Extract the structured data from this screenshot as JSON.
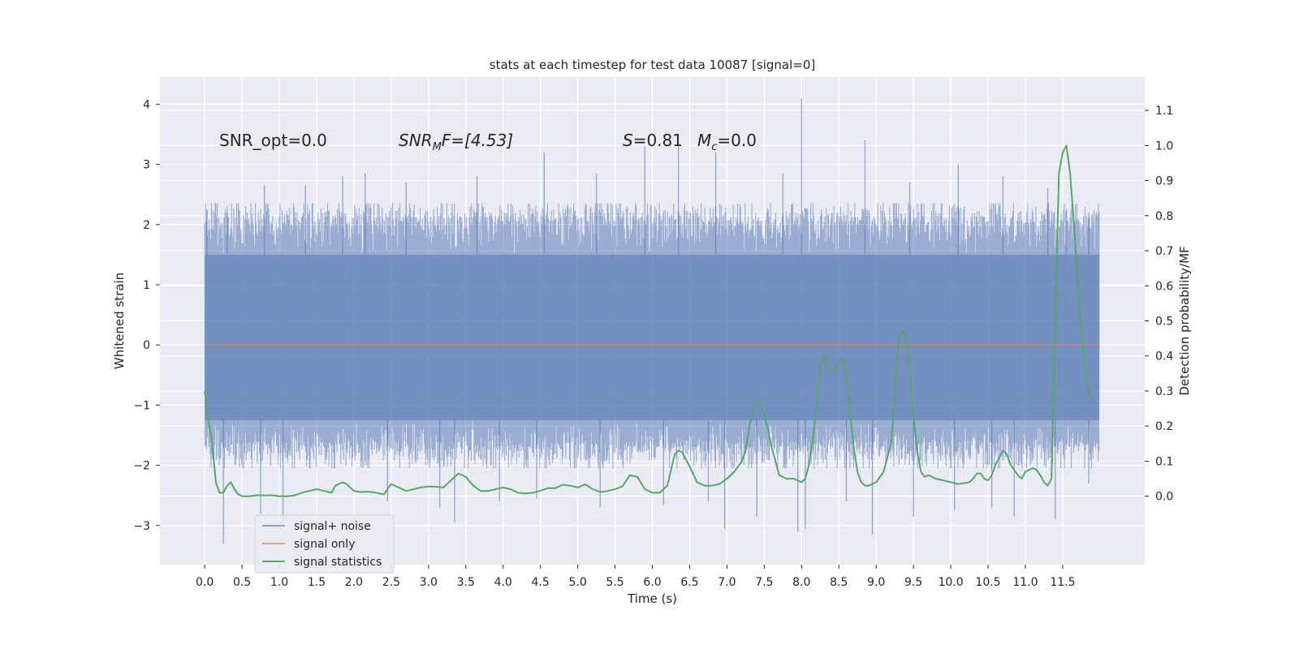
{
  "chart_data": {
    "type": "line",
    "title": "stats at each timestep for test data 10087 [signal=0]",
    "xlabel": "Time (s)",
    "ylabel": "Whitened strain",
    "y2label": "Detection probability/MF",
    "xlim": [
      -0.6,
      12.6
    ],
    "ylim": [
      -3.65,
      4.45
    ],
    "y2lim": [
      -0.195,
      1.195
    ],
    "xticks": [
      0.0,
      0.5,
      1.0,
      1.5,
      2.0,
      2.5,
      3.0,
      3.5,
      4.0,
      4.5,
      5.0,
      5.5,
      6.0,
      6.5,
      7.0,
      7.5,
      8.0,
      8.5,
      9.0,
      9.5,
      10.0,
      10.5,
      11.0,
      11.5
    ],
    "xtick_labels": [
      "0.0",
      "0.5",
      "1.0",
      "1.5",
      "2.0",
      "2.5",
      "3.0",
      "3.5",
      "4.0",
      "4.5",
      "5.0",
      "5.5",
      "6.0",
      "6.5",
      "7.0",
      "7.5",
      "8.0",
      "8.5",
      "9.0",
      "9.5",
      "10.0",
      "10.5",
      "11.0",
      "11.5"
    ],
    "yticks": [
      -3,
      -2,
      -1,
      0,
      1,
      2,
      3,
      4
    ],
    "ytick_labels": [
      "−3",
      "−2",
      "−1",
      "0",
      "1",
      "2",
      "3",
      "4"
    ],
    "y2ticks": [
      0.0,
      0.1,
      0.2,
      0.3,
      0.4,
      0.5,
      0.6,
      0.7,
      0.8,
      0.9,
      1.0,
      1.1
    ],
    "y2tick_labels": [
      "0.0",
      "0.1",
      "0.2",
      "0.3",
      "0.4",
      "0.5",
      "0.6",
      "0.7",
      "0.8",
      "0.9",
      "1.0",
      "1.1"
    ],
    "grid": true,
    "legend_position": "lower-left",
    "colors": {
      "background": "#eaeaf2",
      "noise": "#4c72b0",
      "signal": "#dd8452",
      "statistics": "#55a868",
      "grid": "#ffffff"
    },
    "annotations": {
      "snr_opt": "SNR_opt=0.0",
      "snr_mf_name": "SNR",
      "snr_mf_sub": "M",
      "snr_mf_rest": "F=[4.53]",
      "s_name": "S",
      "s_rest": "=0.81",
      "mc_name": "M",
      "mc_sub": "c",
      "mc_rest": "=0.0"
    },
    "series": [
      {
        "name": "signal+ noise",
        "axis": "left",
        "envelope": {
          "x_start": 0.0,
          "x_end": 11.99,
          "typical_high": 2.0,
          "typical_low": -1.6
        },
        "peaks": [
          {
            "x": 0.03,
            "y": 2.25
          },
          {
            "x": 0.3,
            "y": 2.2
          },
          {
            "x": 0.8,
            "y": 2.65
          },
          {
            "x": 1.35,
            "y": 2.65
          },
          {
            "x": 1.85,
            "y": 2.8
          },
          {
            "x": 2.15,
            "y": 2.85
          },
          {
            "x": 2.7,
            "y": 2.7
          },
          {
            "x": 3.65,
            "y": 2.8
          },
          {
            "x": 4.55,
            "y": 3.2
          },
          {
            "x": 5.25,
            "y": 2.85
          },
          {
            "x": 5.9,
            "y": 3.3
          },
          {
            "x": 6.35,
            "y": 3.35
          },
          {
            "x": 6.85,
            "y": 3.2
          },
          {
            "x": 7.75,
            "y": 2.85
          },
          {
            "x": 8.0,
            "y": 4.1
          },
          {
            "x": 8.85,
            "y": 3.4
          },
          {
            "x": 9.45,
            "y": 2.7
          },
          {
            "x": 10.1,
            "y": 3.0
          },
          {
            "x": 10.7,
            "y": 2.8
          },
          {
            "x": 11.3,
            "y": 2.6
          },
          {
            "x": 11.55,
            "y": 2.25
          },
          {
            "x": 11.85,
            "y": 2.2
          }
        ],
        "troughs": [
          {
            "x": 0.25,
            "y": -3.3
          },
          {
            "x": 0.75,
            "y": -2.8
          },
          {
            "x": 1.05,
            "y": -2.95
          },
          {
            "x": 2.45,
            "y": -2.6
          },
          {
            "x": 3.15,
            "y": -2.7
          },
          {
            "x": 3.35,
            "y": -2.95
          },
          {
            "x": 3.95,
            "y": -2.6
          },
          {
            "x": 4.45,
            "y": -2.55
          },
          {
            "x": 5.3,
            "y": -2.7
          },
          {
            "x": 6.15,
            "y": -2.65
          },
          {
            "x": 6.75,
            "y": -2.6
          },
          {
            "x": 6.97,
            "y": -3.05
          },
          {
            "x": 7.4,
            "y": -2.85
          },
          {
            "x": 7.95,
            "y": -3.1
          },
          {
            "x": 8.05,
            "y": -3.05
          },
          {
            "x": 8.6,
            "y": -2.6
          },
          {
            "x": 8.95,
            "y": -3.15
          },
          {
            "x": 9.5,
            "y": -2.85
          },
          {
            "x": 10.05,
            "y": -2.75
          },
          {
            "x": 10.55,
            "y": -2.7
          },
          {
            "x": 10.85,
            "y": -2.85
          },
          {
            "x": 11.4,
            "y": -2.9
          },
          {
            "x": 11.85,
            "y": -2.3
          }
        ]
      },
      {
        "name": "signal only",
        "axis": "left",
        "x": [
          0.0,
          12.0
        ],
        "y": [
          0.0,
          0.0
        ]
      },
      {
        "name": "signal statistics",
        "axis": "right",
        "x": [
          0.0,
          0.05,
          0.1,
          0.15,
          0.2,
          0.25,
          0.3,
          0.35,
          0.4,
          0.45,
          0.5,
          0.6,
          0.7,
          0.8,
          0.9,
          1.0,
          1.1,
          1.2,
          1.3,
          1.4,
          1.5,
          1.6,
          1.7,
          1.75,
          1.8,
          1.85,
          1.9,
          1.95,
          2.0,
          2.1,
          2.2,
          2.3,
          2.4,
          2.5,
          2.6,
          2.7,
          2.8,
          2.9,
          3.0,
          3.1,
          3.2,
          3.3,
          3.4,
          3.5,
          3.6,
          3.7,
          3.8,
          3.9,
          4.0,
          4.1,
          4.2,
          4.3,
          4.4,
          4.5,
          4.6,
          4.7,
          4.8,
          4.9,
          5.0,
          5.1,
          5.2,
          5.3,
          5.4,
          5.5,
          5.6,
          5.7,
          5.8,
          5.9,
          6.0,
          6.1,
          6.2,
          6.3,
          6.35,
          6.4,
          6.5,
          6.6,
          6.7,
          6.8,
          6.9,
          7.0,
          7.1,
          7.2,
          7.25,
          7.3,
          7.35,
          7.4,
          7.45,
          7.5,
          7.55,
          7.6,
          7.7,
          7.8,
          7.9,
          8.0,
          8.05,
          8.1,
          8.15,
          8.2,
          8.25,
          8.3,
          8.35,
          8.4,
          8.45,
          8.5,
          8.55,
          8.6,
          8.65,
          8.7,
          8.75,
          8.8,
          8.85,
          8.9,
          9.0,
          9.1,
          9.2,
          9.25,
          9.3,
          9.35,
          9.4,
          9.45,
          9.5,
          9.55,
          9.6,
          9.65,
          9.7,
          9.8,
          9.9,
          10.0,
          10.1,
          10.2,
          10.25,
          10.3,
          10.35,
          10.4,
          10.45,
          10.5,
          10.55,
          10.6,
          10.65,
          10.7,
          10.75,
          10.8,
          10.9,
          10.95,
          11.0,
          11.1,
          11.15,
          11.2,
          11.25,
          11.3,
          11.35,
          11.4,
          11.45,
          11.5,
          11.55,
          11.6,
          11.65,
          11.7,
          11.75,
          11.8,
          11.85,
          11.9
        ],
        "y": [
          0.3,
          0.22,
          0.15,
          0.04,
          0.01,
          0.01,
          0.03,
          0.04,
          0.02,
          0.005,
          0.0,
          0.0,
          0.003,
          0.002,
          0.003,
          0.0,
          0.0,
          0.002,
          0.01,
          0.015,
          0.02,
          0.015,
          0.01,
          0.03,
          0.035,
          0.04,
          0.035,
          0.025,
          0.015,
          0.012,
          0.013,
          0.01,
          0.005,
          0.035,
          0.025,
          0.015,
          0.02,
          0.025,
          0.028,
          0.027,
          0.025,
          0.045,
          0.065,
          0.055,
          0.03,
          0.015,
          0.015,
          0.02,
          0.025,
          0.02,
          0.01,
          0.008,
          0.01,
          0.016,
          0.023,
          0.023,
          0.033,
          0.03,
          0.025,
          0.034,
          0.02,
          0.012,
          0.015,
          0.02,
          0.028,
          0.06,
          0.055,
          0.02,
          0.01,
          0.01,
          0.03,
          0.12,
          0.13,
          0.125,
          0.085,
          0.04,
          0.03,
          0.03,
          0.035,
          0.05,
          0.07,
          0.1,
          0.13,
          0.2,
          0.245,
          0.27,
          0.26,
          0.23,
          0.19,
          0.14,
          0.06,
          0.05,
          0.05,
          0.04,
          0.05,
          0.09,
          0.16,
          0.26,
          0.375,
          0.4,
          0.375,
          0.355,
          0.36,
          0.385,
          0.39,
          0.34,
          0.24,
          0.14,
          0.07,
          0.04,
          0.03,
          0.03,
          0.04,
          0.07,
          0.15,
          0.28,
          0.45,
          0.47,
          0.46,
          0.36,
          0.23,
          0.13,
          0.07,
          0.055,
          0.06,
          0.05,
          0.045,
          0.04,
          0.035,
          0.038,
          0.04,
          0.05,
          0.065,
          0.065,
          0.05,
          0.045,
          0.06,
          0.09,
          0.11,
          0.13,
          0.12,
          0.09,
          0.06,
          0.05,
          0.07,
          0.08,
          0.075,
          0.06,
          0.04,
          0.03,
          0.05,
          0.5,
          0.92,
          0.98,
          1.0,
          0.92,
          0.78,
          0.62,
          0.46,
          0.35,
          0.3,
          0.27
        ]
      }
    ]
  }
}
